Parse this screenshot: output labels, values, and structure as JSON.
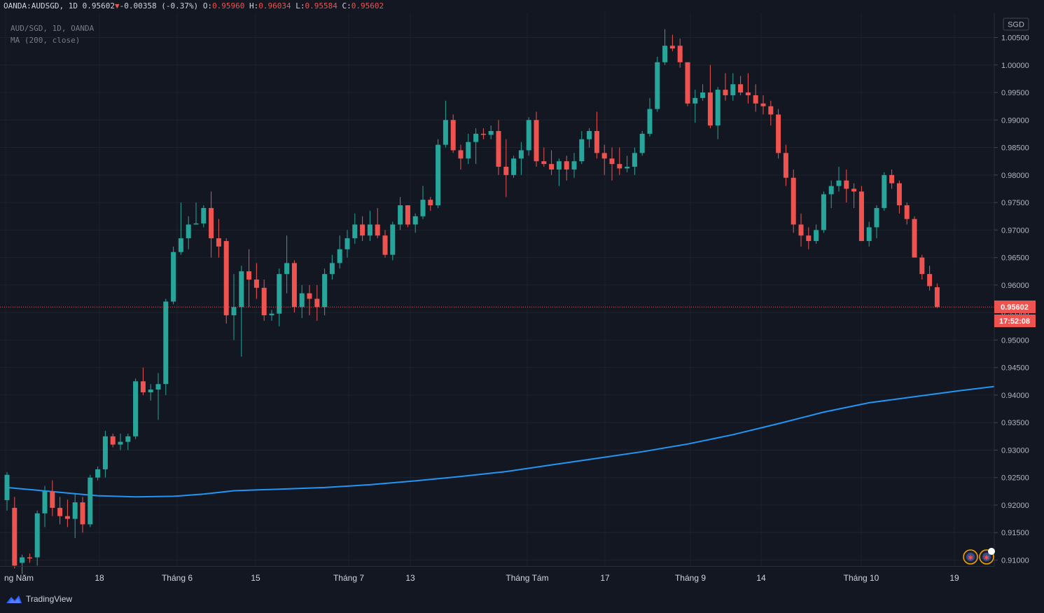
{
  "header": {
    "symbol": "OANDA:AUDSGD",
    "interval": "1D",
    "last": "0.95602",
    "change": "-0.00358",
    "change_pct": "(-0.37%)",
    "open_label": "O:",
    "open": "0.95960",
    "high_label": "H:",
    "high": "0.96034",
    "low_label": "L:",
    "low": "0.95584",
    "close_label": "C:",
    "close": "0.95602"
  },
  "legend": {
    "line1": "AUD/SGD, 1D, OANDA",
    "line2": "MA (200, close)"
  },
  "currency_badge": "SGD",
  "price_badge": "0.95602",
  "time_badge": "17:52:08",
  "footer": {
    "brand": "TradingView"
  },
  "colors": {
    "up": "#26a69a",
    "down": "#ef5350",
    "ma": "#2196f3",
    "bg": "#131722",
    "grid": "#1e222d"
  },
  "chart_data": {
    "type": "candlestick",
    "y_axis_ticks": [
      "1.00500",
      "1.00000",
      "0.99500",
      "0.99000",
      "0.98500",
      "0.98000",
      "0.97500",
      "0.97000",
      "0.96500",
      "0.96000",
      "0.95500",
      "0.95000",
      "0.94500",
      "0.94000",
      "0.93500",
      "0.93000",
      "0.92500",
      "0.92000",
      "0.91500",
      "0.91000"
    ],
    "x_axis_ticks": [
      "ng Năm",
      "18",
      "Tháng 6",
      "15",
      "Tháng 7",
      "13",
      "Tháng Tám",
      "17",
      "Tháng 9",
      "14",
      "Tháng 10",
      "19"
    ],
    "ylim": [
      0.9093,
      1.0065
    ],
    "candles_ohlc": [
      [
        0.9209,
        0.926,
        0.919,
        0.9255
      ],
      [
        0.9195,
        0.9215,
        0.9085,
        0.909
      ],
      [
        0.9095,
        0.911,
        0.9075,
        0.9105
      ],
      [
        0.9105,
        0.9112,
        0.9095,
        0.9103
      ],
      [
        0.9105,
        0.919,
        0.909,
        0.9185
      ],
      [
        0.9185,
        0.9235,
        0.916,
        0.9225
      ],
      [
        0.9225,
        0.9245,
        0.918,
        0.9195
      ],
      [
        0.9195,
        0.9215,
        0.9165,
        0.918
      ],
      [
        0.918,
        0.921,
        0.916,
        0.9175
      ],
      [
        0.9175,
        0.922,
        0.914,
        0.9205
      ],
      [
        0.9205,
        0.9215,
        0.915,
        0.9165
      ],
      [
        0.9165,
        0.9255,
        0.916,
        0.925
      ],
      [
        0.925,
        0.927,
        0.9245,
        0.9265
      ],
      [
        0.9265,
        0.9335,
        0.925,
        0.9325
      ],
      [
        0.9325,
        0.933,
        0.9305,
        0.931
      ],
      [
        0.931,
        0.933,
        0.93,
        0.9315
      ],
      [
        0.9315,
        0.933,
        0.93,
        0.9325
      ],
      [
        0.9325,
        0.943,
        0.932,
        0.9425
      ],
      [
        0.9425,
        0.945,
        0.94,
        0.9405
      ],
      [
        0.9405,
        0.942,
        0.939,
        0.941
      ],
      [
        0.941,
        0.944,
        0.9355,
        0.942
      ],
      [
        0.942,
        0.9575,
        0.94,
        0.957
      ],
      [
        0.957,
        0.967,
        0.9565,
        0.966
      ],
      [
        0.966,
        0.975,
        0.9655,
        0.9685
      ],
      [
        0.9685,
        0.9725,
        0.9665,
        0.971
      ],
      [
        0.971,
        0.975,
        0.971,
        0.9712
      ],
      [
        0.9712,
        0.9745,
        0.9705,
        0.974
      ],
      [
        0.974,
        0.977,
        0.965,
        0.9685
      ],
      [
        0.9685,
        0.972,
        0.965,
        0.967
      ],
      [
        0.968,
        0.9685,
        0.953,
        0.9545
      ],
      [
        0.9545,
        0.962,
        0.95,
        0.956
      ],
      [
        0.956,
        0.9635,
        0.947,
        0.9625
      ],
      [
        0.9625,
        0.9665,
        0.956,
        0.961
      ],
      [
        0.961,
        0.964,
        0.9575,
        0.9595
      ],
      [
        0.9595,
        0.961,
        0.9535,
        0.9545
      ],
      [
        0.9545,
        0.9555,
        0.9535,
        0.9548
      ],
      [
        0.9548,
        0.963,
        0.9525,
        0.962
      ],
      [
        0.962,
        0.969,
        0.9585,
        0.964
      ],
      [
        0.964,
        0.9645,
        0.955,
        0.956
      ],
      [
        0.956,
        0.96,
        0.954,
        0.9585
      ],
      [
        0.9585,
        0.96,
        0.9545,
        0.9575
      ],
      [
        0.9575,
        0.96,
        0.9535,
        0.956
      ],
      [
        0.956,
        0.963,
        0.9545,
        0.962
      ],
      [
        0.962,
        0.9655,
        0.961,
        0.964
      ],
      [
        0.964,
        0.969,
        0.963,
        0.9665
      ],
      [
        0.9665,
        0.97,
        0.965,
        0.9685
      ],
      [
        0.9685,
        0.973,
        0.9675,
        0.971
      ],
      [
        0.971,
        0.9725,
        0.968,
        0.969
      ],
      [
        0.969,
        0.9735,
        0.968,
        0.971
      ],
      [
        0.971,
        0.974,
        0.9685,
        0.969
      ],
      [
        0.969,
        0.97,
        0.965,
        0.9655
      ],
      [
        0.9655,
        0.9715,
        0.9645,
        0.971
      ],
      [
        0.971,
        0.976,
        0.97,
        0.9745
      ],
      [
        0.9745,
        0.9745,
        0.9705,
        0.971
      ],
      [
        0.971,
        0.973,
        0.9695,
        0.9725
      ],
      [
        0.9725,
        0.978,
        0.972,
        0.9755
      ],
      [
        0.9755,
        0.976,
        0.9735,
        0.9745
      ],
      [
        0.9745,
        0.9865,
        0.974,
        0.9855
      ],
      [
        0.9855,
        0.9935,
        0.985,
        0.99
      ],
      [
        0.99,
        0.991,
        0.984,
        0.9845
      ],
      [
        0.9845,
        0.9855,
        0.981,
        0.983
      ],
      [
        0.983,
        0.9875,
        0.982,
        0.986
      ],
      [
        0.986,
        0.9885,
        0.982,
        0.9875
      ],
      [
        0.9875,
        0.9885,
        0.9865,
        0.9873
      ],
      [
        0.9873,
        0.989,
        0.9865,
        0.988
      ],
      [
        0.988,
        0.99,
        0.98,
        0.9815
      ],
      [
        0.9815,
        0.9865,
        0.976,
        0.98
      ],
      [
        0.98,
        0.9835,
        0.9795,
        0.983
      ],
      [
        0.983,
        0.986,
        0.98,
        0.9845
      ],
      [
        0.9845,
        0.9905,
        0.9835,
        0.99
      ],
      [
        0.99,
        0.9915,
        0.9815,
        0.9825
      ],
      [
        0.9825,
        0.985,
        0.9815,
        0.982
      ],
      [
        0.982,
        0.9845,
        0.98,
        0.981
      ],
      [
        0.981,
        0.983,
        0.978,
        0.9825
      ],
      [
        0.9825,
        0.9835,
        0.979,
        0.981
      ],
      [
        0.981,
        0.984,
        0.9795,
        0.9825
      ],
      [
        0.9825,
        0.988,
        0.982,
        0.9865
      ],
      [
        0.9865,
        0.9885,
        0.985,
        0.988
      ],
      [
        0.988,
        0.9915,
        0.983,
        0.984
      ],
      [
        0.984,
        0.9855,
        0.98,
        0.983
      ],
      [
        0.983,
        0.985,
        0.979,
        0.982
      ],
      [
        0.982,
        0.985,
        0.98,
        0.9812
      ],
      [
        0.9812,
        0.9835,
        0.9805,
        0.9815
      ],
      [
        0.9815,
        0.985,
        0.98,
        0.984
      ],
      [
        0.984,
        0.988,
        0.9835,
        0.9875
      ],
      [
        0.9875,
        0.994,
        0.987,
        0.992
      ],
      [
        0.992,
        1.0015,
        0.9915,
        1.0005
      ],
      [
        1.0005,
        1.0065,
        1.0,
        1.0035
      ],
      [
        1.0035,
        1.0055,
        1.0025,
        1.003
      ],
      [
        1.0035,
        1.0048,
        0.9995,
        1.0005
      ],
      [
        1.0005,
        1.0005,
        0.9925,
        0.993
      ],
      [
        0.993,
        0.9955,
        0.9895,
        0.994
      ],
      [
        0.994,
        0.9965,
        0.9935,
        0.995
      ],
      [
        0.995,
        1.0,
        0.9885,
        0.989
      ],
      [
        0.989,
        0.996,
        0.9865,
        0.9955
      ],
      [
        0.9955,
        0.9985,
        0.9935,
        0.9945
      ],
      [
        0.9945,
        0.9985,
        0.9935,
        0.9965
      ],
      [
        0.9965,
        0.998,
        0.9945,
        0.995
      ],
      [
        0.995,
        0.9985,
        0.993,
        0.9945
      ],
      [
        0.9945,
        0.9965,
        0.9915,
        0.993
      ],
      [
        0.993,
        0.9945,
        0.991,
        0.9925
      ],
      [
        0.9925,
        0.9935,
        0.989,
        0.991
      ],
      [
        0.991,
        0.992,
        0.983,
        0.984
      ],
      [
        0.984,
        0.9855,
        0.978,
        0.9795
      ],
      [
        0.9795,
        0.981,
        0.9695,
        0.971
      ],
      [
        0.971,
        0.973,
        0.967,
        0.969
      ],
      [
        0.969,
        0.9705,
        0.9665,
        0.968
      ],
      [
        0.968,
        0.971,
        0.9675,
        0.97
      ],
      [
        0.97,
        0.977,
        0.9695,
        0.9765
      ],
      [
        0.9765,
        0.979,
        0.974,
        0.978
      ],
      [
        0.978,
        0.9815,
        0.977,
        0.979
      ],
      [
        0.979,
        0.981,
        0.975,
        0.9775
      ],
      [
        0.9775,
        0.9785,
        0.974,
        0.977
      ],
      [
        0.977,
        0.978,
        0.968,
        0.968
      ],
      [
        0.968,
        0.9715,
        0.967,
        0.9705
      ],
      [
        0.9705,
        0.9745,
        0.9685,
        0.974
      ],
      [
        0.974,
        0.9805,
        0.9735,
        0.98
      ],
      [
        0.98,
        0.981,
        0.9775,
        0.9785
      ],
      [
        0.9785,
        0.979,
        0.973,
        0.9745
      ],
      [
        0.9745,
        0.975,
        0.971,
        0.972
      ],
      [
        0.972,
        0.9725,
        0.965,
        0.965
      ],
      [
        0.965,
        0.9655,
        0.961,
        0.962
      ],
      [
        0.962,
        0.9635,
        0.959,
        0.9598
      ],
      [
        0.9596,
        0.9603,
        0.9558,
        0.956
      ]
    ],
    "ma200": [
      [
        0,
        0.9232
      ],
      [
        4,
        0.9227
      ],
      [
        8,
        0.9222
      ],
      [
        12,
        0.9217
      ],
      [
        17,
        0.9215
      ],
      [
        22,
        0.9216
      ],
      [
        26,
        0.922
      ],
      [
        30,
        0.9226
      ],
      [
        36,
        0.9229
      ],
      [
        42,
        0.9232
      ],
      [
        48,
        0.9237
      ],
      [
        54,
        0.9244
      ],
      [
        60,
        0.9252
      ],
      [
        66,
        0.9261
      ],
      [
        72,
        0.9273
      ],
      [
        78,
        0.9285
      ],
      [
        84,
        0.9297
      ],
      [
        90,
        0.9311
      ],
      [
        96,
        0.9328
      ],
      [
        102,
        0.9348
      ],
      [
        108,
        0.9369
      ],
      [
        114,
        0.9386
      ],
      [
        120,
        0.9397
      ],
      [
        126,
        0.9408
      ],
      [
        132,
        0.9418
      ],
      [
        138,
        0.9431
      ]
    ]
  }
}
